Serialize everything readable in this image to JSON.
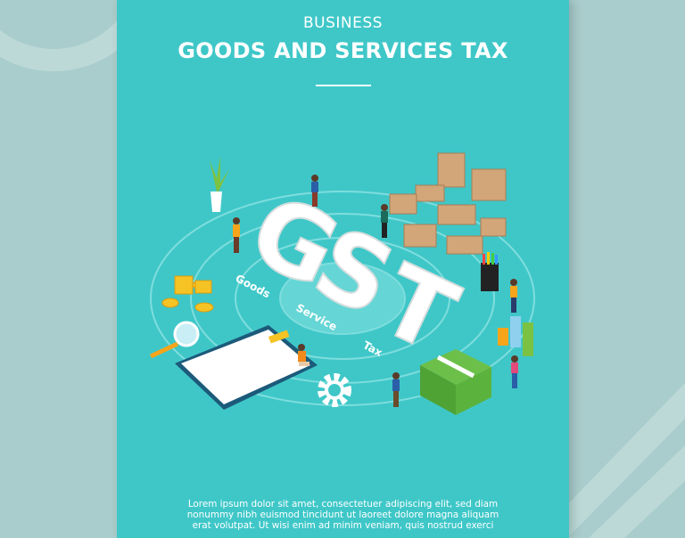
{
  "poster": {
    "category": "BUSINESS",
    "title": "GOODS AND SERVICES TAX",
    "illustration": {
      "big_letters": "GST",
      "ring_labels": [
        "Goods",
        "Service",
        "Tax"
      ]
    },
    "body_lines": [
      "Lorem ipsum dolor sit amet, consectetuer adipiscing elit, sed diam",
      "nonummy nibh euismod tincidunt ut laoreet dolore magna aliquam",
      "erat volutpat. Ut wisi enim ad minim veniam, quis nostrud exerci"
    ]
  },
  "colors": {
    "poster_bg": "#3fc7c8",
    "outer_bg": "#a9cdcc",
    "text": "#ffffff"
  }
}
